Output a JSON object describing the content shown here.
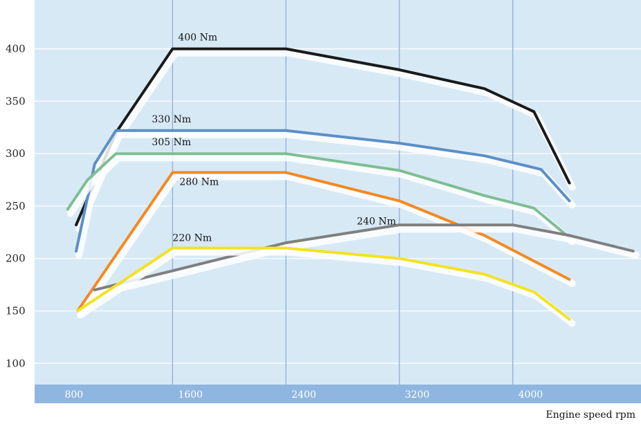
{
  "chart_data": {
    "type": "line",
    "x_ticks": [
      "800",
      "1600",
      "2400",
      "3200",
      "4000"
    ],
    "y_ticks": [
      "100",
      "150",
      "200",
      "250",
      "300",
      "350",
      "400"
    ],
    "xlabel": "Engine speed rpm",
    "ylabel": "",
    "title": "",
    "xlim": [
      700,
      4900
    ],
    "ylim": [
      85,
      440
    ],
    "grid": true,
    "legend": "none",
    "background_color": "#d8e9f6",
    "axis_band_color": "#8fb6e0",
    "series": [
      {
        "name": "400 Nm",
        "color": "#1a1a1a",
        "points": [
          [
            920,
            232
          ],
          [
            1200,
            320
          ],
          [
            1600,
            400
          ],
          [
            2400,
            400
          ],
          [
            3200,
            380
          ],
          [
            3800,
            362
          ],
          [
            4150,
            340
          ],
          [
            4400,
            272
          ]
        ]
      },
      {
        "name": "330 Nm",
        "color": "#5b8fc7",
        "points": [
          [
            920,
            207
          ],
          [
            1050,
            290
          ],
          [
            1200,
            322
          ],
          [
            2400,
            322
          ],
          [
            3200,
            310
          ],
          [
            3800,
            298
          ],
          [
            4200,
            285
          ],
          [
            4400,
            255
          ]
        ]
      },
      {
        "name": "305 Nm",
        "color": "#7dbf92",
        "points": [
          [
            860,
            247
          ],
          [
            1000,
            275
          ],
          [
            1200,
            300
          ],
          [
            2400,
            300
          ],
          [
            3200,
            284
          ],
          [
            3800,
            260
          ],
          [
            4150,
            248
          ],
          [
            4400,
            220
          ]
        ]
      },
      {
        "name": "280 Nm",
        "color": "#f5891f",
        "points": [
          [
            930,
            150
          ],
          [
            1600,
            282
          ],
          [
            2400,
            282
          ],
          [
            3200,
            255
          ],
          [
            3800,
            222
          ],
          [
            4400,
            180
          ]
        ]
      },
      {
        "name": "240 Nm",
        "color": "#7f7f7f",
        "points": [
          [
            1050,
            170
          ],
          [
            2400,
            215
          ],
          [
            3200,
            232
          ],
          [
            4000,
            232
          ],
          [
            4400,
            222
          ],
          [
            4850,
            207
          ]
        ]
      },
      {
        "name": "220 Nm",
        "color": "#f4e21f",
        "points": [
          [
            930,
            150
          ],
          [
            1600,
            210
          ],
          [
            2400,
            210
          ],
          [
            3200,
            200
          ],
          [
            3800,
            185
          ],
          [
            4150,
            168
          ],
          [
            4400,
            142
          ]
        ]
      }
    ]
  }
}
